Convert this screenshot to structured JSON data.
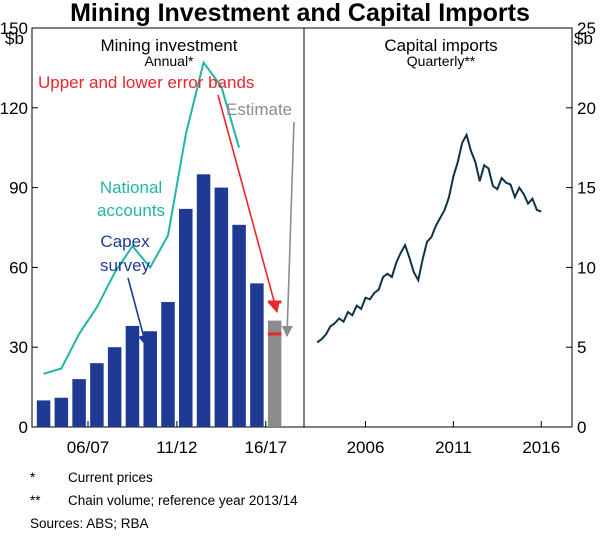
{
  "chart_data": {
    "title": "Mining Investment and Capital Imports",
    "left_axis": {
      "label": "$b",
      "ticks": [
        0,
        30,
        60,
        90,
        120,
        150
      ],
      "ylim": [
        0,
        150
      ]
    },
    "right_axis": {
      "label": "$b",
      "ticks": [
        0,
        5,
        10,
        15,
        20,
        25
      ],
      "ylim": [
        0,
        25
      ]
    },
    "panels": [
      {
        "title": "Mining investment",
        "subtitle": "Annual*",
        "type": "bar+line",
        "x_tick_labels": [
          "06/07",
          "11/12",
          "16/17"
        ],
        "x_tick_positions": [
          3,
          8,
          13
        ],
        "capex_survey": {
          "name": "Capex survey",
          "color": "#1f3a93",
          "values": [
            10,
            11,
            18,
            24,
            30,
            38,
            36,
            47,
            82,
            95,
            90,
            76,
            54
          ]
        },
        "estimate": {
          "name": "Estimate",
          "value": 40,
          "upper": 47,
          "lower": 35,
          "color": "#8c8c8c",
          "band_color": "#e8262b"
        },
        "national_accounts": {
          "name": "National accounts",
          "color": "#22b5a5",
          "x": [
            0,
            1,
            2,
            3,
            4,
            5,
            6,
            7,
            8,
            9,
            10,
            11
          ],
          "values": [
            20,
            22,
            35,
            45,
            58,
            68,
            60,
            72,
            110,
            137,
            128,
            105
          ]
        },
        "annotations": [
          "National accounts",
          "Capex survey",
          "Upper and lower error bands",
          "Estimate"
        ]
      },
      {
        "title": "Capital imports",
        "subtitle": "Quarterly**",
        "type": "line",
        "color": "#0d3347",
        "x_tick_labels": [
          "2006",
          "2011",
          "2016"
        ],
        "x_tick_values": [
          2006,
          2011,
          2016
        ],
        "xlim": [
          2002.5,
          2017.75
        ],
        "x": [
          2003.25,
          2003.5,
          2003.75,
          2004.0,
          2004.25,
          2004.5,
          2004.75,
          2005.0,
          2005.25,
          2005.5,
          2005.75,
          2006.0,
          2006.25,
          2006.5,
          2006.75,
          2007.0,
          2007.25,
          2007.5,
          2007.75,
          2008.0,
          2008.25,
          2008.5,
          2008.75,
          2009.0,
          2009.25,
          2009.5,
          2009.75,
          2010.0,
          2010.25,
          2010.5,
          2010.75,
          2011.0,
          2011.25,
          2011.5,
          2011.75,
          2012.0,
          2012.25,
          2012.5,
          2012.75,
          2013.0,
          2013.25,
          2013.5,
          2013.75,
          2014.0,
          2014.25,
          2014.5,
          2014.75,
          2015.0,
          2015.25,
          2015.5,
          2015.75,
          2016.0
        ],
        "values": [
          5.3,
          5.5,
          5.8,
          6.3,
          6.5,
          6.8,
          6.6,
          7.2,
          7.0,
          7.6,
          7.4,
          8.1,
          8.0,
          8.4,
          8.6,
          9.4,
          9.6,
          9.4,
          10.3,
          10.9,
          11.4,
          10.6,
          9.7,
          9.2,
          10.5,
          11.6,
          11.9,
          12.6,
          13.1,
          13.6,
          14.4,
          15.7,
          16.6,
          17.8,
          18.3,
          17.3,
          16.6,
          15.4,
          16.4,
          16.2,
          15.1,
          14.9,
          15.6,
          15.3,
          15.2,
          14.4,
          15.0,
          14.6,
          14.0,
          14.3,
          13.6,
          13.5
        ]
      }
    ]
  },
  "footnotes": [
    {
      "marker": "*",
      "text": "Current prices"
    },
    {
      "marker": "**",
      "text": "Chain volume; reference year 2013/14"
    }
  ],
  "sources": "Sources:  ABS; RBA"
}
